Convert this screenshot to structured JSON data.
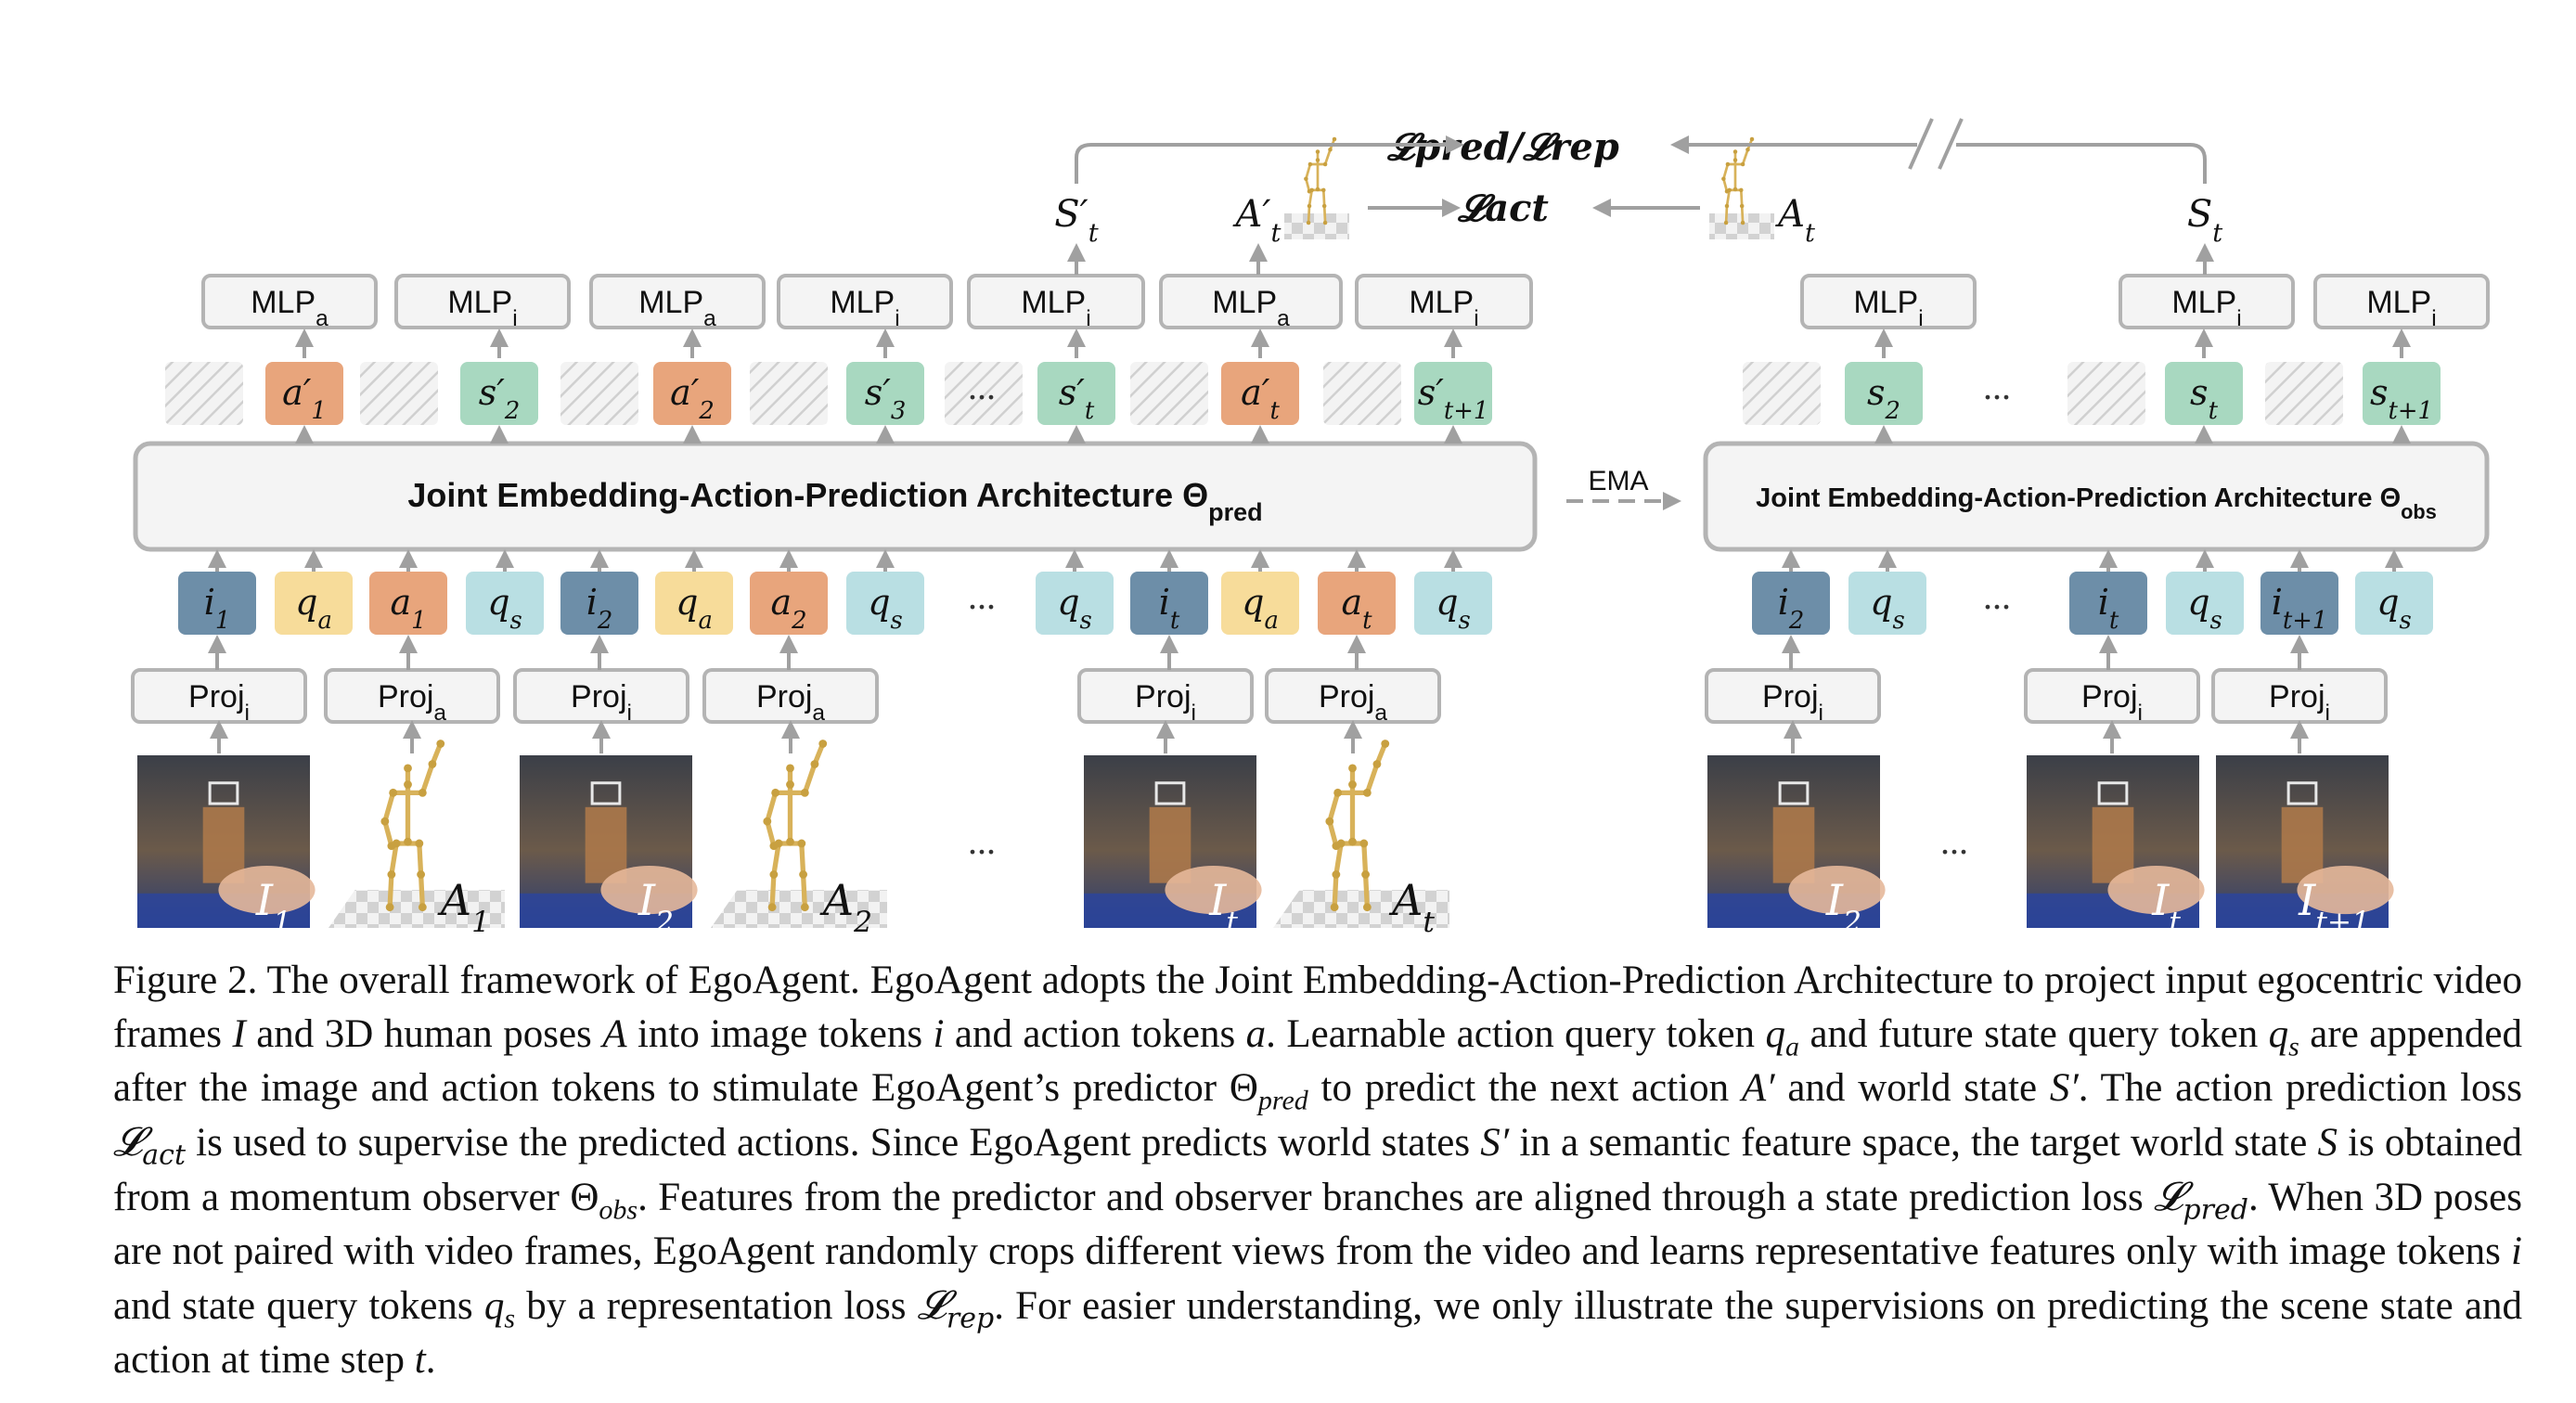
{
  "figure": {
    "pred_arch_label": "Joint Embedding-Action-Prediction Architecture Θ",
    "pred_arch_sub": "pred",
    "obs_arch_label": "Joint Embedding-Action-Prediction Architecture Θ",
    "obs_arch_sub": "obs",
    "ema_label": "EMA",
    "ellipsis": "...",
    "loss_pred_rep": "𝓛pred/𝓛rep",
    "loss_act": "𝓛act",
    "pred_mlps": [
      {
        "base": "MLP",
        "sub": "a"
      },
      {
        "base": "MLP",
        "sub": "i"
      },
      {
        "base": "MLP",
        "sub": "a"
      },
      {
        "base": "MLP",
        "sub": "i"
      },
      {
        "base": "MLP",
        "sub": "i"
      },
      {
        "base": "MLP",
        "sub": "a"
      },
      {
        "base": "MLP",
        "sub": "i"
      }
    ],
    "obs_mlps": [
      {
        "base": "MLP",
        "sub": "i"
      },
      {
        "base": "MLP",
        "sub": "i"
      },
      {
        "base": "MLP",
        "sub": "i"
      }
    ],
    "pred_out_tokens": [
      {
        "base": "a′",
        "sub": "1",
        "kind": "action"
      },
      {
        "base": "s′",
        "sub": "2",
        "kind": "state"
      },
      {
        "base": "a′",
        "sub": "2",
        "kind": "action"
      },
      {
        "base": "s′",
        "sub": "3",
        "kind": "state"
      },
      {
        "base": "s′",
        "sub": "t",
        "kind": "state"
      },
      {
        "base": "a′",
        "sub": "t",
        "kind": "action"
      },
      {
        "base": "s′",
        "sub": "t+1",
        "kind": "state"
      }
    ],
    "obs_out_tokens": [
      {
        "base": "s",
        "sub": "2",
        "kind": "state"
      },
      {
        "base": "s",
        "sub": "t",
        "kind": "state"
      },
      {
        "base": "s",
        "sub": "t+1",
        "kind": "state"
      }
    ],
    "pred_in_tokens": [
      {
        "base": "i",
        "sub": "1",
        "kind": "image"
      },
      {
        "base": "q",
        "sub": "a",
        "kind": "qa"
      },
      {
        "base": "a",
        "sub": "1",
        "kind": "action"
      },
      {
        "base": "q",
        "sub": "s",
        "kind": "qs"
      },
      {
        "base": "i",
        "sub": "2",
        "kind": "image"
      },
      {
        "base": "q",
        "sub": "a",
        "kind": "qa"
      },
      {
        "base": "a",
        "sub": "2",
        "kind": "action"
      },
      {
        "base": "q",
        "sub": "s",
        "kind": "qs"
      },
      {
        "base": "q",
        "sub": "s",
        "kind": "qs"
      },
      {
        "base": "i",
        "sub": "t",
        "kind": "image"
      },
      {
        "base": "q",
        "sub": "a",
        "kind": "qa"
      },
      {
        "base": "a",
        "sub": "t",
        "kind": "action"
      },
      {
        "base": "q",
        "sub": "s",
        "kind": "qs"
      }
    ],
    "obs_in_tokens": [
      {
        "base": "i",
        "sub": "2",
        "kind": "image"
      },
      {
        "base": "q",
        "sub": "s",
        "kind": "qs"
      },
      {
        "base": "i",
        "sub": "t",
        "kind": "image"
      },
      {
        "base": "q",
        "sub": "s",
        "kind": "qs"
      },
      {
        "base": "i",
        "sub": "t+1",
        "kind": "image"
      },
      {
        "base": "q",
        "sub": "s",
        "kind": "qs"
      }
    ],
    "pred_projs": [
      {
        "base": "Proj",
        "sub": "i"
      },
      {
        "base": "Proj",
        "sub": "a"
      },
      {
        "base": "Proj",
        "sub": "i"
      },
      {
        "base": "Proj",
        "sub": "a"
      },
      {
        "base": "Proj",
        "sub": "i"
      },
      {
        "base": "Proj",
        "sub": "a"
      }
    ],
    "obs_projs": [
      {
        "base": "Proj",
        "sub": "i"
      },
      {
        "base": "Proj",
        "sub": "i"
      },
      {
        "base": "Proj",
        "sub": "i"
      }
    ],
    "pred_inputs": [
      {
        "kind": "frame",
        "base": "I",
        "sub": "1"
      },
      {
        "kind": "pose",
        "base": "A",
        "sub": "1"
      },
      {
        "kind": "frame",
        "base": "I",
        "sub": "2"
      },
      {
        "kind": "pose",
        "base": "A",
        "sub": "2"
      },
      {
        "kind": "frame",
        "base": "I",
        "sub": "t"
      },
      {
        "kind": "pose",
        "base": "A",
        "sub": "t"
      }
    ],
    "obs_inputs": [
      {
        "kind": "frame",
        "base": "I",
        "sub": "2"
      },
      {
        "kind": "frame",
        "base": "I",
        "sub": "t"
      },
      {
        "kind": "frame",
        "base": "I",
        "sub": "t+1"
      }
    ],
    "top_labels": {
      "st_prime": {
        "base": "S′",
        "sub": "t"
      },
      "at_prime": {
        "base": "A′",
        "sub": "t"
      },
      "at": {
        "base": "A",
        "sub": "t"
      },
      "st": {
        "base": "S",
        "sub": "t"
      }
    }
  },
  "colors": {
    "box_border": "#b4b4b4",
    "box_fill": "#f4f4f4",
    "arrow": "#a0a0a0",
    "image_token": "#6d8ea8",
    "action_token": "#e8a57c",
    "qa_token": "#f7dc9a",
    "qs_token": "#b9dfe3",
    "state_token": "#a8d8c0"
  },
  "caption": {
    "parts": [
      {
        "t": "Figure 2.  The overall framework of EgoAgent.  EgoAgent adopts the Joint Embedding-Action-Prediction Architecture to project input egocentric video frames "
      },
      {
        "m": "I"
      },
      {
        "t": " and 3D human poses "
      },
      {
        "m": "A"
      },
      {
        "t": " into image tokens "
      },
      {
        "m": "i"
      },
      {
        "t": " and action tokens "
      },
      {
        "m": "a"
      },
      {
        "t": ". Learnable action query token "
      },
      {
        "m": "q",
        "s": "a"
      },
      {
        "t": " and future state query token "
      },
      {
        "m": "q",
        "s": "s"
      },
      {
        "t": " are appended after the image and action tokens to stimulate EgoAgent’s predictor "
      },
      {
        "g": "Θ",
        "s": "pred"
      },
      {
        "t": " to predict the next action "
      },
      {
        "m": "A′"
      },
      {
        "t": " and world state "
      },
      {
        "m": "S′"
      },
      {
        "t": ". The action prediction loss "
      },
      {
        "c": "𝓛",
        "s": "act"
      },
      {
        "t": " is used to supervise the predicted actions. Since EgoAgent predicts world states "
      },
      {
        "m": "S′"
      },
      {
        "t": " in a semantic feature space, the target world state "
      },
      {
        "m": "S"
      },
      {
        "t": " is obtained from a momentum observer "
      },
      {
        "g": "Θ",
        "s": "obs"
      },
      {
        "t": ". Features from the predictor and observer branches are aligned through a state prediction loss "
      },
      {
        "c": "𝓛",
        "s": "pred"
      },
      {
        "t": ". When 3D poses are not paired with video frames, EgoAgent randomly crops different views from the video and learns representative features only with image tokens "
      },
      {
        "m": "i"
      },
      {
        "t": " and state query tokens "
      },
      {
        "m": "q",
        "s": "s"
      },
      {
        "t": " by a representation loss "
      },
      {
        "c": "𝓛",
        "s": "rep"
      },
      {
        "t": ". For easier understanding, we only illustrate the supervisions on predicting the scene state and action at time step "
      },
      {
        "m": "t"
      },
      {
        "t": "."
      }
    ]
  }
}
